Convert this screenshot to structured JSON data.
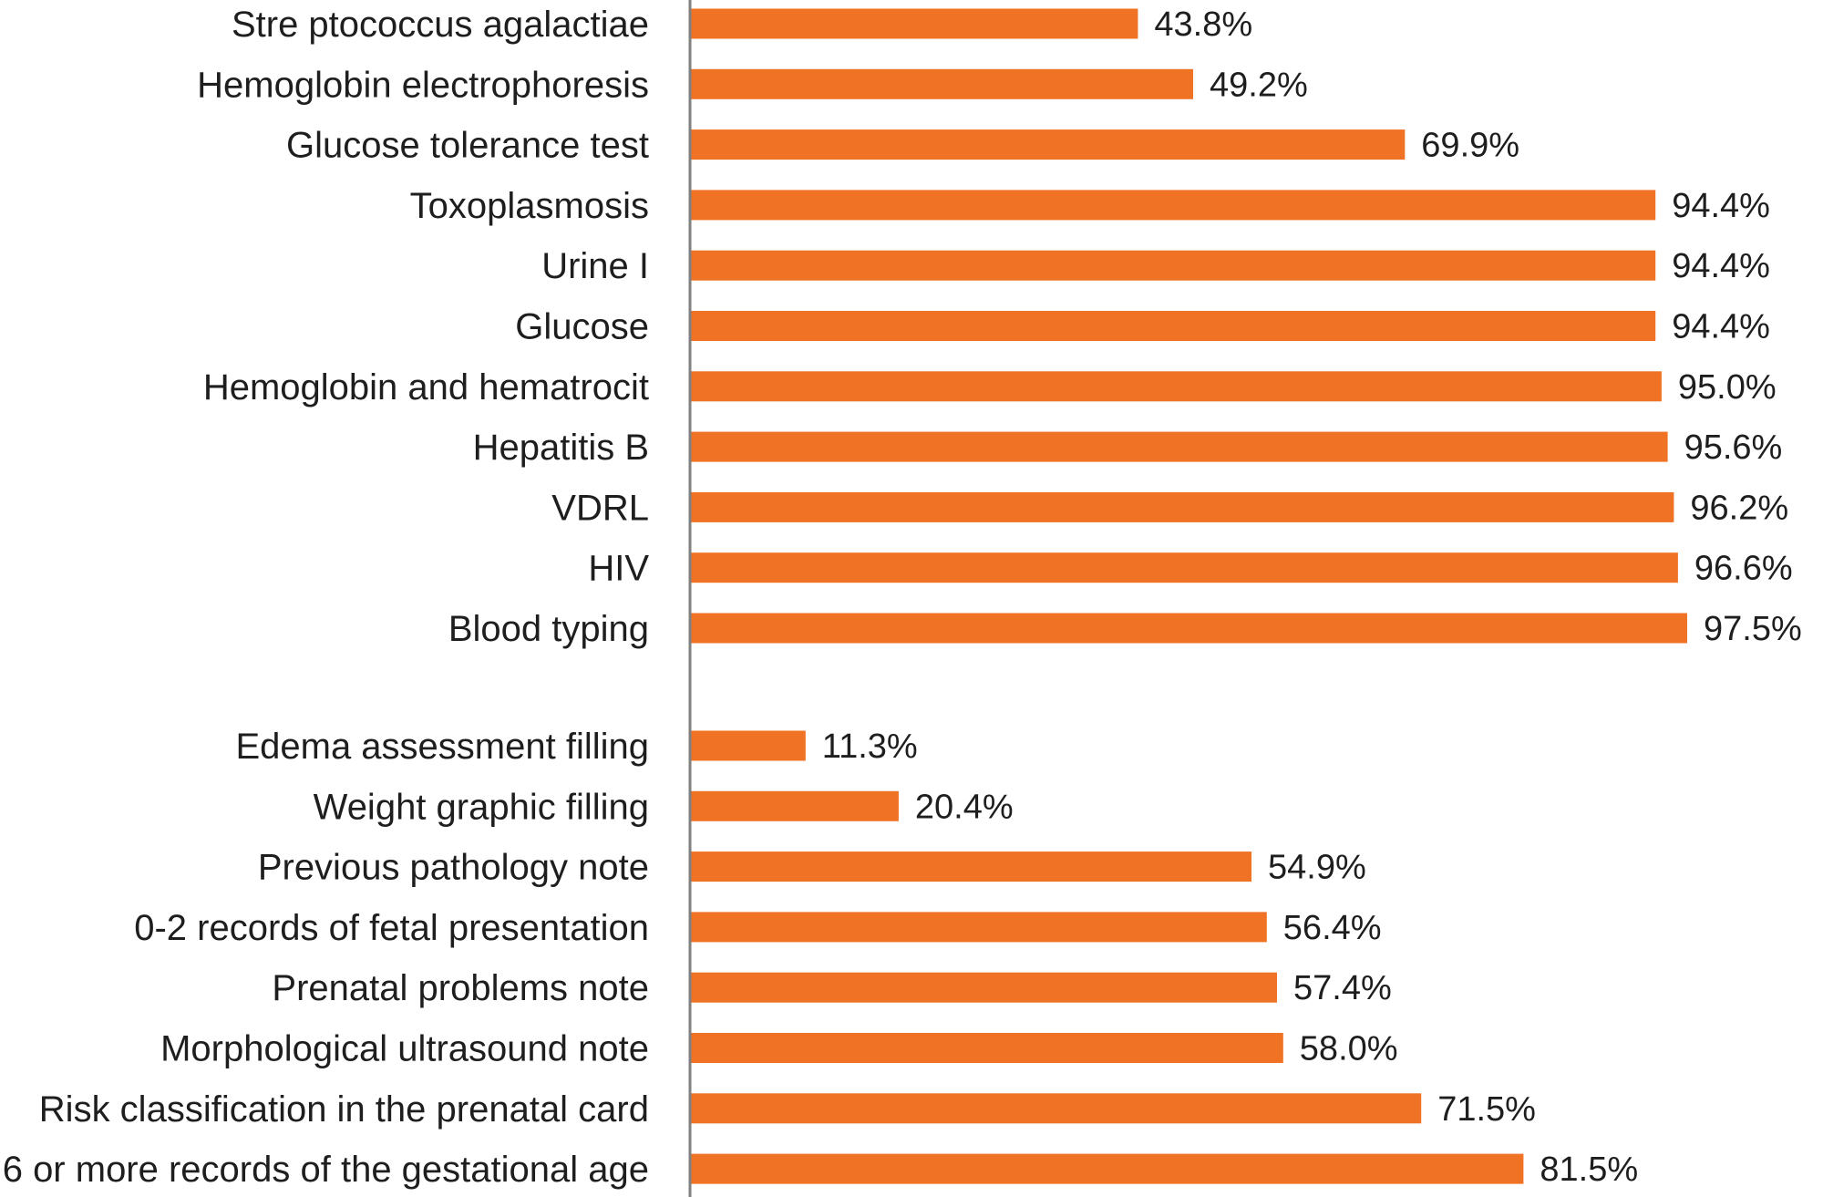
{
  "chart_data": {
    "type": "bar",
    "orientation": "horizontal",
    "title": "",
    "xlabel": "",
    "ylabel": "",
    "xlim": [
      0,
      100
    ],
    "grid": false,
    "value_suffix": "%",
    "bar_color": "#f07225",
    "axis_color": "#808080",
    "groups": [
      {
        "categories": [
          "Stre ptococcus agalactiae",
          "Hemoglobin electrophoresis",
          "Glucose tolerance test",
          "Toxoplasmosis",
          "Urine I",
          "Glucose",
          "Hemoglobin and hematrocit",
          "Hepatitis B",
          "VDRL",
          "HIV",
          "Blood typing"
        ],
        "values": [
          43.8,
          49.2,
          69.9,
          94.4,
          94.4,
          94.4,
          95.0,
          95.6,
          96.2,
          96.6,
          97.5
        ],
        "value_labels": [
          "43.8%",
          "49.2%",
          "69.9%",
          "94.4%",
          "94.4%",
          "94.4%",
          "95.0%",
          "95.6%",
          "96.2%",
          "96.6%",
          "97.5%"
        ]
      },
      {
        "categories": [
          "Edema assessment filling",
          "Weight graphic filling",
          "Previous pathology note",
          "0-2 records of fetal presentation",
          "Prenatal problems note",
          "Morphological ultrasound note",
          "Risk classification in the prenatal card",
          "6 or more records of the gestational age"
        ],
        "values": [
          11.3,
          20.4,
          54.9,
          56.4,
          57.4,
          58.0,
          71.5,
          81.5
        ],
        "value_labels": [
          "11.3%",
          "20.4%",
          "54.9%",
          "56.4%",
          "57.4%",
          "58.0%",
          "71.5%",
          "81.5%"
        ]
      }
    ]
  }
}
